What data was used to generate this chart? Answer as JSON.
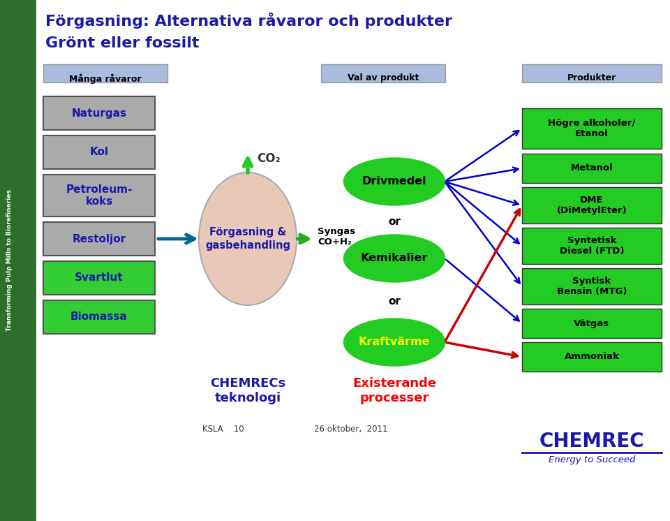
{
  "title_line1": "Förgasning: Alternativa råvaror och produkter",
  "title_line2": "Grönt eller fossilt",
  "title_color": "#1a1aaa",
  "bg_color": "#ffffff",
  "sidebar_text": "Transforming Pulp Mills to Biorefineries",
  "sidebar_bg": "#2d6e2d",
  "header_bg": "#aabbdd",
  "headers": [
    "Många råvaror",
    "Val av produkt",
    "Produkter"
  ],
  "raw_box_gray_color": "#aaaaaa",
  "raw_box_green_color": "#33cc33",
  "raw_text_color": "#1a1aaa",
  "gasification_label": "Förgasning &\ngasbehandling",
  "gasification_ellipse_fill": "#e8c8b8",
  "co2_label": "CO₂",
  "syngas_label": "Syngas\nCO+H₂",
  "kraftvarme_text_color": "#ffff00",
  "existing_label": "Existerande\nprocesser",
  "existing_color": "#ff0000",
  "chemrecs_label": "CHEMRECs\nteknologi",
  "chemrecs_color": "#1a1aaa",
  "ksla_label": "KSLA    10",
  "date_label": "26 oktober,  2011",
  "product_box_color": "#22cc22",
  "chemrec_logo_text": "CHEMREC",
  "chemrec_sub_text": "Energy to Succeed",
  "chemrec_logo_color": "#1a1aaa",
  "arrow_blue": "#0000cc",
  "arrow_red": "#cc0000",
  "arrow_green": "#22aa22",
  "arrow_teal": "#006699"
}
